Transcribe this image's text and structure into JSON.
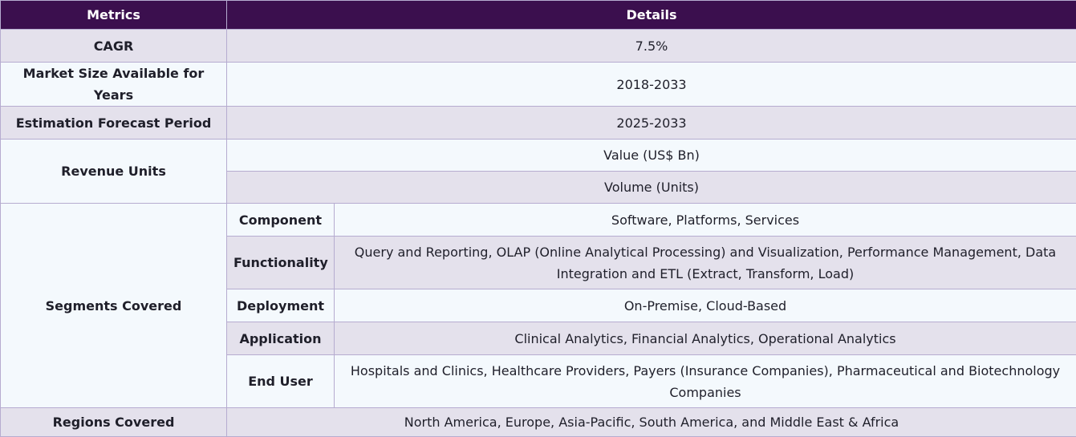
{
  "header": {
    "metrics": "Metrics",
    "details": "Details"
  },
  "rows": {
    "cagr": {
      "label": "CAGR",
      "value": "7.5%"
    },
    "market_size": {
      "label": "Market Size Available for Years",
      "value": "2018-2033"
    },
    "forecast": {
      "label": "Estimation Forecast Period",
      "value": "2025-2033"
    },
    "revenue_units": {
      "label": "Revenue Units",
      "values": [
        "Value (US$ Bn)",
        "Volume (Units)"
      ]
    },
    "segments": {
      "label": "Segments Covered",
      "items": [
        {
          "name": "Component",
          "value": "Software, Platforms, Services"
        },
        {
          "name": "Functionality",
          "value": "Query and Reporting, OLAP (Online Analytical Processing) and Visualization, Performance Management, Data Integration and ETL (Extract, Transform, Load)"
        },
        {
          "name": "Deployment",
          "value": "On-Premise, Cloud-Based"
        },
        {
          "name": "Application",
          "value": "Clinical Analytics, Financial Analytics, Operational Analytics"
        },
        {
          "name": "End User",
          "value": "Hospitals and Clinics, Healthcare Providers, Payers (Insurance Companies), Pharmaceutical and Biotechnology Companies"
        }
      ]
    },
    "regions": {
      "label": "Regions Covered",
      "value": "North America, Europe, Asia-Pacific, South America, and Middle East & Africa"
    }
  },
  "colors": {
    "header_bg": "#3b0f4e",
    "row_shade": "#e4e1ec",
    "row_light": "#f4f9fd",
    "border": "#b6acd0"
  }
}
